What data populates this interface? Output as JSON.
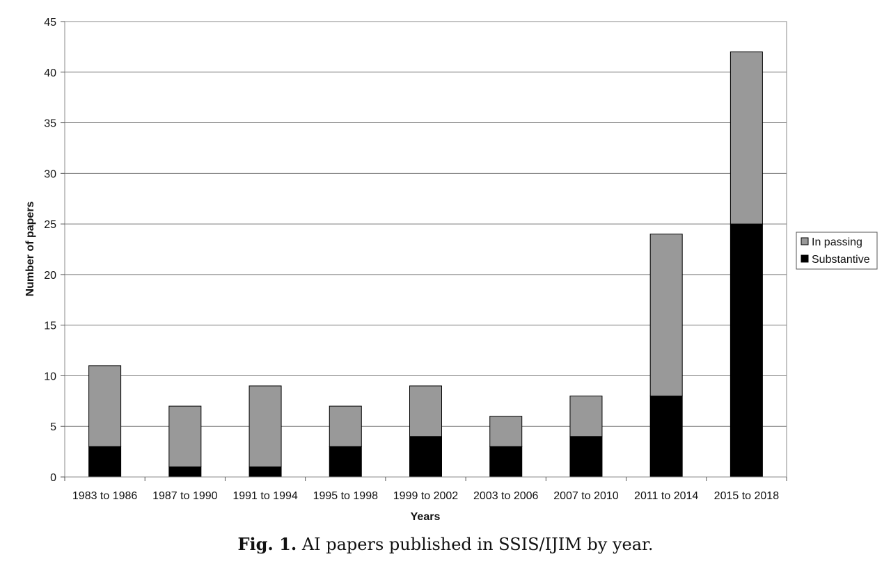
{
  "chart_data": {
    "type": "bar",
    "stacked": true,
    "categories": [
      "1983 to 1986",
      "1987 to 1990",
      "1991 to 1994",
      "1995 to 1998",
      "1999 to 2002",
      "2003 to 2006",
      "2007 to 2010",
      "2011 to 2014",
      "2015 to 2018"
    ],
    "series": [
      {
        "name": "Substantive",
        "color": "#000000",
        "values": [
          3,
          1,
          1,
          3,
          4,
          3,
          4,
          8,
          25
        ]
      },
      {
        "name": "In passing",
        "color": "#999999",
        "values": [
          8,
          6,
          8,
          4,
          5,
          3,
          4,
          16,
          17
        ]
      }
    ],
    "xlabel": "Years",
    "ylabel": "Number of papers",
    "ylim": [
      0,
      45
    ],
    "yticks": [
      0,
      5,
      10,
      15,
      20,
      25,
      30,
      35,
      40,
      45
    ],
    "grid": true,
    "legend_position": "right"
  },
  "caption": {
    "label": "Fig. 1.",
    "text": "AI papers published in SSIS/IJIM by year."
  }
}
